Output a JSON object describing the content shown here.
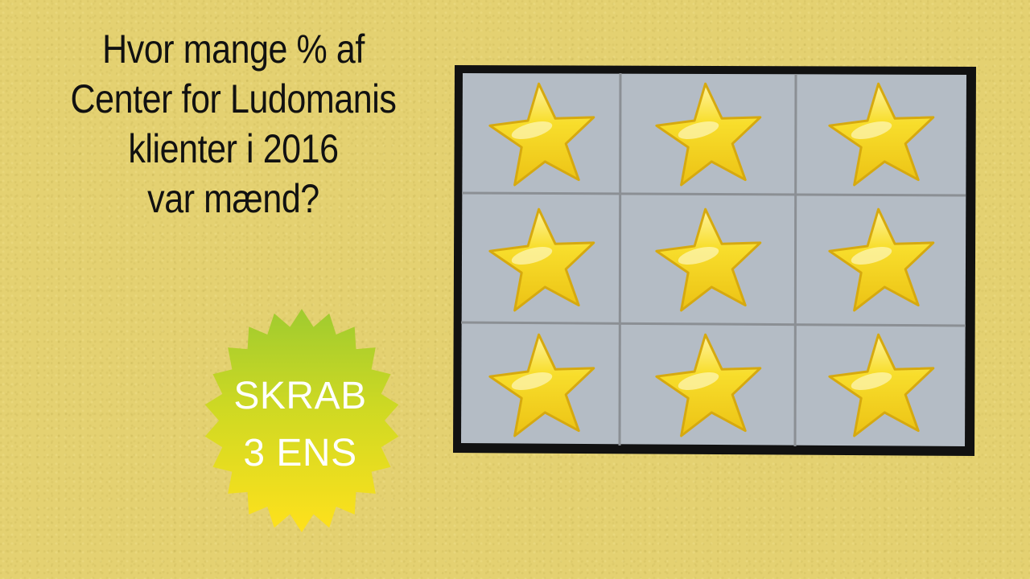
{
  "question": {
    "line1": "Hvor mange % af",
    "line2": "Center for Ludomanis",
    "line3": "klienter i 2016",
    "line4": "var mænd?"
  },
  "badge": {
    "line1": "SKRAB",
    "line2": "3 ENS",
    "icon": "starburst-badge"
  },
  "scratch_card": {
    "rows": 3,
    "columns": 3,
    "cell_icon": "star-icon",
    "cells": [
      {
        "id": "r1c1",
        "symbol": "star"
      },
      {
        "id": "r1c2",
        "symbol": "star"
      },
      {
        "id": "r1c3",
        "symbol": "star"
      },
      {
        "id": "r2c1",
        "symbol": "star"
      },
      {
        "id": "r2c2",
        "symbol": "star"
      },
      {
        "id": "r2c3",
        "symbol": "star"
      },
      {
        "id": "r3c1",
        "symbol": "star"
      },
      {
        "id": "r3c2",
        "symbol": "star"
      },
      {
        "id": "r3c3",
        "symbol": "star"
      }
    ]
  },
  "colors": {
    "background": "#e4d171",
    "question_text": "#111111",
    "card_frame": "#111111",
    "card_cell": "#b4bcc5",
    "card_grid_line": "#8b8f94",
    "star_fill": "#f2d21e",
    "star_highlight": "#fff6a8",
    "star_outline": "#d6a90f",
    "badge_top": "#a8cf2c",
    "badge_bottom": "#ffe11c",
    "badge_text": "#ffffff"
  }
}
